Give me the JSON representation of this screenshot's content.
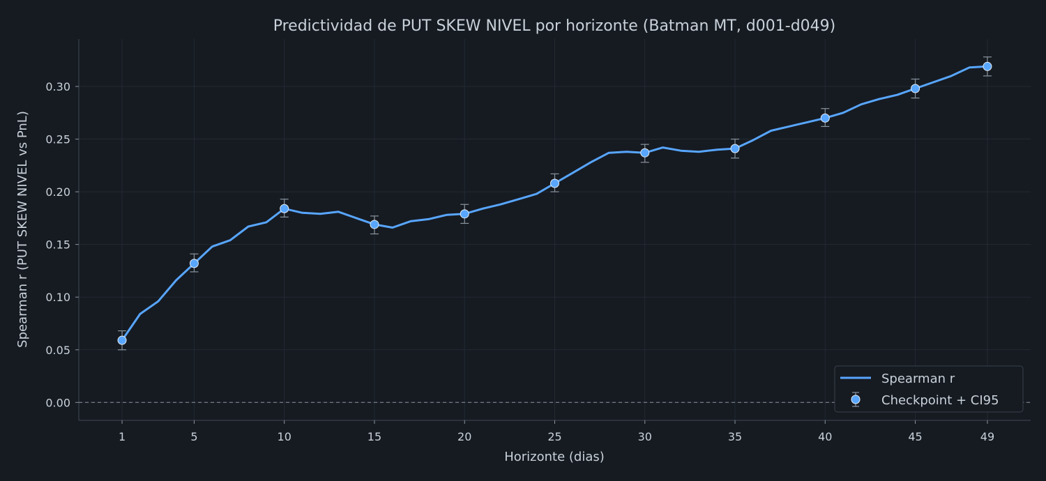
{
  "chart_data": {
    "type": "line",
    "title": "Predictividad de PUT SKEW NIVEL por horizonte (Batman MT, d001-d049)",
    "xlabel": "Horizonte (dias)",
    "ylabel": "Spearman r (PUT SKEW NIVEL vs PnL)",
    "xlim": [
      -1.4,
      51.4
    ],
    "ylim": [
      -0.017,
      0.345
    ],
    "x_ticks": [
      1,
      5,
      10,
      15,
      20,
      25,
      30,
      35,
      40,
      45,
      49
    ],
    "y_ticks": [
      0.0,
      0.05,
      0.1,
      0.15,
      0.2,
      0.25,
      0.3
    ],
    "y_tick_labels": [
      "0.00",
      "0.05",
      "0.10",
      "0.15",
      "0.20",
      "0.25",
      "0.30"
    ],
    "grid": true,
    "zero_line": true,
    "legend_position": "bottom-right",
    "series": [
      {
        "name": "Spearman r",
        "color": "#58a6ff",
        "x": [
          1,
          2,
          3,
          4,
          5,
          6,
          7,
          8,
          9,
          10,
          11,
          12,
          13,
          14,
          15,
          16,
          17,
          18,
          19,
          20,
          21,
          22,
          23,
          24,
          25,
          26,
          27,
          28,
          29,
          30,
          31,
          32,
          33,
          34,
          35,
          36,
          37,
          38,
          39,
          40,
          41,
          42,
          43,
          44,
          45,
          46,
          47,
          48,
          49
        ],
        "values": [
          0.059,
          0.084,
          0.096,
          0.116,
          0.132,
          0.148,
          0.154,
          0.167,
          0.171,
          0.184,
          0.18,
          0.179,
          0.181,
          0.175,
          0.169,
          0.166,
          0.172,
          0.174,
          0.178,
          0.179,
          0.184,
          0.188,
          0.193,
          0.198,
          0.208,
          0.218,
          0.228,
          0.237,
          0.238,
          0.237,
          0.242,
          0.239,
          0.238,
          0.24,
          0.241,
          0.249,
          0.258,
          0.262,
          0.266,
          0.27,
          0.275,
          0.283,
          0.288,
          0.292,
          0.298,
          0.304,
          0.31,
          0.318,
          0.319
        ]
      },
      {
        "name": "Checkpoint + CI95",
        "color": "#58a6ff",
        "x": [
          1,
          5,
          10,
          15,
          20,
          25,
          30,
          35,
          40,
          45,
          49
        ],
        "values": [
          0.059,
          0.132,
          0.184,
          0.169,
          0.179,
          0.208,
          0.237,
          0.241,
          0.27,
          0.298,
          0.319
        ],
        "ci_low": [
          0.05,
          0.124,
          0.176,
          0.16,
          0.17,
          0.2,
          0.228,
          0.232,
          0.262,
          0.289,
          0.31
        ],
        "ci_high": [
          0.068,
          0.141,
          0.193,
          0.177,
          0.188,
          0.217,
          0.245,
          0.25,
          0.279,
          0.307,
          0.328
        ]
      }
    ]
  }
}
